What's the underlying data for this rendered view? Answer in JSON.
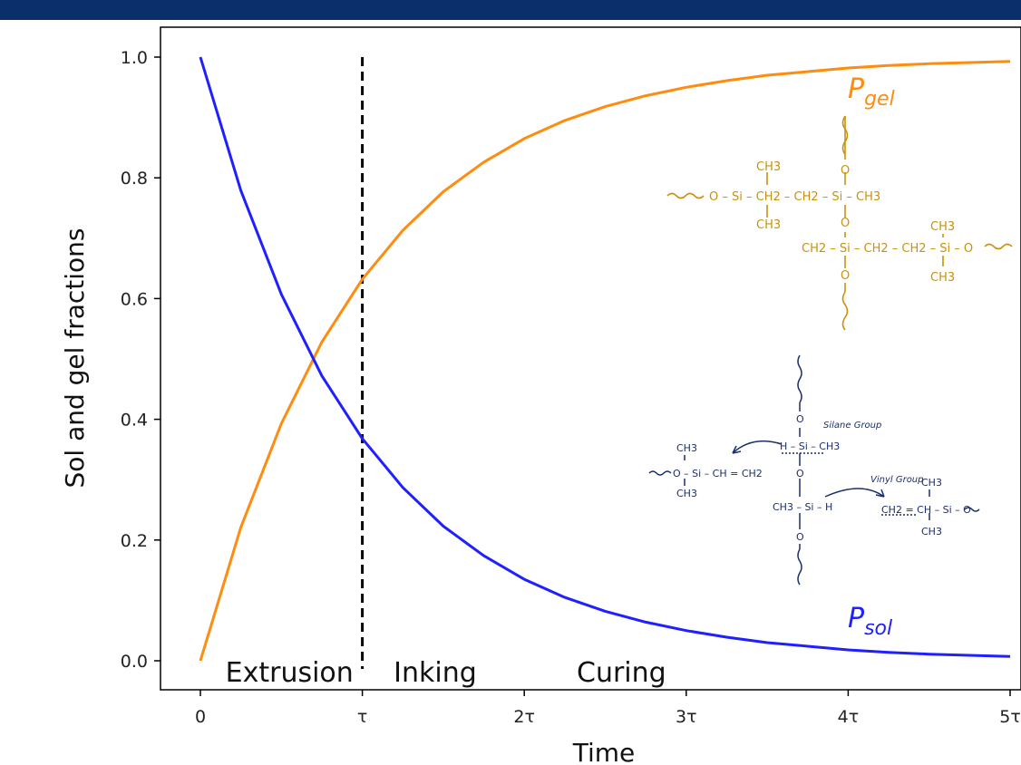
{
  "chart_data": {
    "type": "line",
    "xlabel": "Time",
    "ylabel": "Sol and gel fractions",
    "xlim": [
      0,
      5
    ],
    "ylim": [
      0,
      1
    ],
    "x_ticks": [
      {
        "value": 0,
        "label": "0"
      },
      {
        "value": 1,
        "label": "τ"
      },
      {
        "value": 2,
        "label": "2τ"
      },
      {
        "value": 3,
        "label": "3τ"
      },
      {
        "value": 4,
        "label": "4τ"
      },
      {
        "value": 5,
        "label": "5τ"
      }
    ],
    "y_ticks": [
      {
        "value": 0.0,
        "label": "0.0"
      },
      {
        "value": 0.2,
        "label": "0.2"
      },
      {
        "value": 0.4,
        "label": "0.4"
      },
      {
        "value": 0.6,
        "label": "0.6"
      },
      {
        "value": 0.8,
        "label": "0.8"
      },
      {
        "value": 1.0,
        "label": "1.0"
      }
    ],
    "series": [
      {
        "key": "gel",
        "color": "#ff8c0f",
        "label_main": "P",
        "label_sub": "gel",
        "x": [
          0,
          0.25,
          0.5,
          0.75,
          1,
          1.25,
          1.5,
          1.75,
          2,
          2.25,
          2.5,
          2.75,
          3,
          3.25,
          3.5,
          3.75,
          4,
          4.25,
          4.5,
          4.75,
          5
        ],
        "y": [
          0,
          0.221,
          0.393,
          0.528,
          0.632,
          0.713,
          0.777,
          0.826,
          0.865,
          0.895,
          0.918,
          0.936,
          0.95,
          0.961,
          0.97,
          0.976,
          0.982,
          0.986,
          0.989,
          0.991,
          0.993
        ]
      },
      {
        "key": "sol",
        "color": "#1f1fff",
        "label_main": "P",
        "label_sub": "sol",
        "x": [
          0,
          0.25,
          0.5,
          0.75,
          1,
          1.25,
          1.5,
          1.75,
          2,
          2.25,
          2.5,
          2.75,
          3,
          3.25,
          3.5,
          3.75,
          4,
          4.25,
          4.5,
          4.75,
          5
        ],
        "y": [
          1,
          0.779,
          0.607,
          0.472,
          0.368,
          0.287,
          0.223,
          0.174,
          0.135,
          0.105,
          0.082,
          0.064,
          0.05,
          0.039,
          0.03,
          0.024,
          0.018,
          0.014,
          0.011,
          0.009,
          0.007
        ]
      }
    ],
    "vline": {
      "x": 1,
      "style": "dashed",
      "color": "#000000"
    },
    "phase_labels": [
      {
        "text": "Extrusion",
        "x": 0.55
      },
      {
        "text": "Inking",
        "x": 1.45
      },
      {
        "text": "Curing",
        "x": 2.6
      }
    ],
    "grid": false,
    "legend": "none"
  },
  "structures": {
    "gel_color": "#c9920a",
    "sol_color": "#1a2e6e",
    "gel": {
      "ch3_top": "CH3",
      "row1_left": "O – Si – CH2 – CH2 – Si – CH3",
      "ch3_mid": "CH3",
      "o_top": "O",
      "o_mid": "O",
      "ch3_right": "CH3",
      "row2": "CH2 – Si – CH2 – CH2 – Si – O",
      "o_low": "O",
      "ch3_low": "CH3"
    },
    "sol": {
      "silane_group": "Silane Group",
      "vinyl_group": "Vinyl Group",
      "o1": "O",
      "si_row": "H – Si – CH3",
      "o2": "O",
      "left_top": "CH3",
      "left_row": "O – Si – CH = CH2",
      "left_bot": "CH3",
      "center_row": "CH3 – Si – H",
      "o3": "O",
      "right_top": "CH3",
      "right_row": "CH2 = CH – Si – O",
      "right_bot": "CH3"
    }
  }
}
